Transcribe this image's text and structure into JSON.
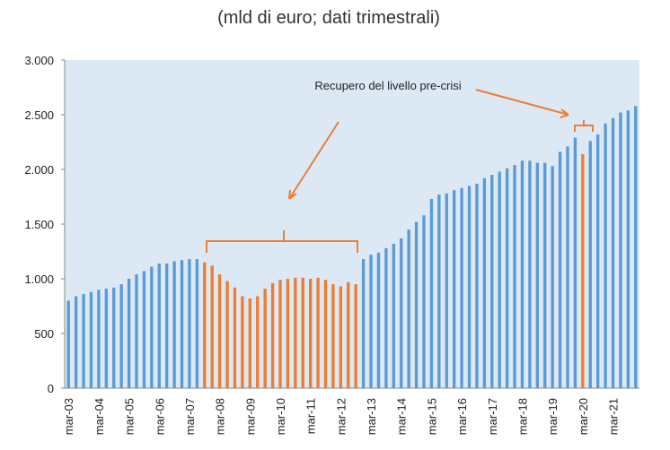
{
  "chart_data": {
    "type": "bar",
    "title": "(mld di euro; dati trimestrali)",
    "annotation": "Recupero del livello pre-crisi",
    "categories": [
      "mar-03",
      null,
      null,
      null,
      "mar-04",
      null,
      null,
      null,
      "mar-05",
      null,
      null,
      null,
      "mar-06",
      null,
      null,
      null,
      "mar-07",
      null,
      null,
      null,
      "mar-08",
      null,
      null,
      null,
      "mar-09",
      null,
      null,
      null,
      "mar-10",
      null,
      null,
      null,
      "mar-11",
      null,
      null,
      null,
      "mar-12",
      null,
      null,
      null,
      "mar-13",
      null,
      null,
      null,
      "mar-14",
      null,
      null,
      null,
      "mar-15",
      null,
      null,
      null,
      "mar-16",
      null,
      null,
      null,
      "mar-17",
      null,
      null,
      null,
      "mar-18",
      null,
      null,
      null,
      "mar-19",
      null,
      null,
      null,
      "mar-20",
      null,
      null,
      null,
      "mar-21",
      null,
      null,
      null
    ],
    "series": [
      {
        "color": "#5b9bd5",
        "values": [
          800,
          840,
          860,
          880,
          900,
          910,
          920,
          950,
          1000,
          1040,
          1070,
          1110,
          1140,
          1140,
          1160,
          1170,
          1180,
          1180,
          null,
          null,
          null,
          null,
          null,
          null,
          null,
          null,
          null,
          null,
          null,
          null,
          null,
          null,
          null,
          null,
          null,
          null,
          null,
          null,
          null,
          1180,
          1220,
          1240,
          1280,
          1320,
          1370,
          1450,
          1520,
          1580,
          1730,
          1770,
          1780,
          1810,
          1830,
          1850,
          1870,
          1920,
          1950,
          1980,
          2010,
          2040,
          2080,
          2080,
          2060,
          2060,
          2030,
          2160,
          2210,
          2290,
          null,
          2260,
          2320,
          2420,
          2470,
          2520,
          2540,
          2580
        ]
      },
      {
        "color": "#ed7d31",
        "values": [
          null,
          null,
          null,
          null,
          null,
          null,
          null,
          null,
          null,
          null,
          null,
          null,
          null,
          null,
          null,
          null,
          null,
          null,
          1150,
          1120,
          1040,
          980,
          920,
          840,
          820,
          840,
          910,
          960,
          990,
          1000,
          1010,
          1010,
          1000,
          1010,
          990,
          950,
          930,
          970,
          950,
          null,
          null,
          null,
          null,
          null,
          null,
          null,
          null,
          null,
          null,
          null,
          null,
          null,
          null,
          null,
          null,
          null,
          null,
          null,
          null,
          null,
          null,
          null,
          null,
          null,
          null,
          null,
          null,
          null,
          2140,
          null,
          null,
          null,
          null,
          null,
          null,
          null
        ]
      }
    ],
    "ylim": [
      0,
      3000
    ],
    "yticks": [
      0,
      500,
      {
        "value": 1000,
        "label": "1.000"
      },
      {
        "value": 1500,
        "label": "1.500"
      },
      {
        "value": 2000,
        "label": "2.000"
      },
      {
        "value": 2500,
        "label": "2.500"
      },
      {
        "value": 3000,
        "label": "3.000"
      }
    ],
    "background": "#dce9f5"
  }
}
